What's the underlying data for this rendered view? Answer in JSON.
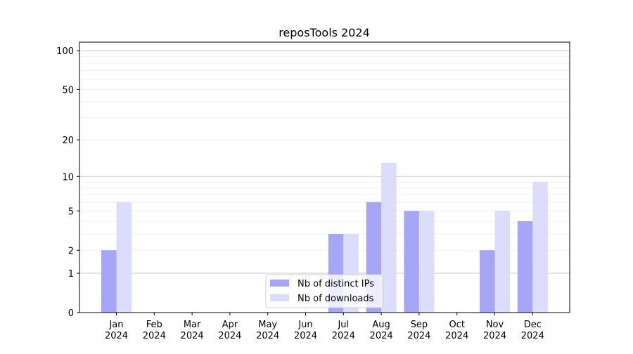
{
  "chart_data": {
    "type": "bar",
    "title": "reposTools 2024",
    "xlabel": "",
    "ylabel": "",
    "yscale": "log10(1+y)",
    "ylim": [
      0,
      116
    ],
    "yticks": [
      0,
      1,
      2,
      5,
      10,
      20,
      50,
      100
    ],
    "grid": true,
    "legend_position": "bottom-center",
    "categories": [
      "Jan\n2024",
      "Feb\n2024",
      "Mar\n2024",
      "Apr\n2024",
      "May\n2024",
      "Jun\n2024",
      "Jul\n2024",
      "Aug\n2024",
      "Sep\n2024",
      "Oct\n2024",
      "Nov\n2024",
      "Dec\n2024"
    ],
    "series": [
      {
        "name": "Nb of distinct IPs",
        "color": "#a6a6f8",
        "values": [
          2,
          0,
          0,
          0,
          0,
          0,
          3,
          6,
          5,
          0,
          2,
          4
        ]
      },
      {
        "name": "Nb of downloads",
        "color": "#dcdcfc",
        "values": [
          6,
          0,
          0,
          0,
          0,
          0,
          3,
          13,
          5,
          0,
          5,
          9
        ]
      }
    ]
  }
}
